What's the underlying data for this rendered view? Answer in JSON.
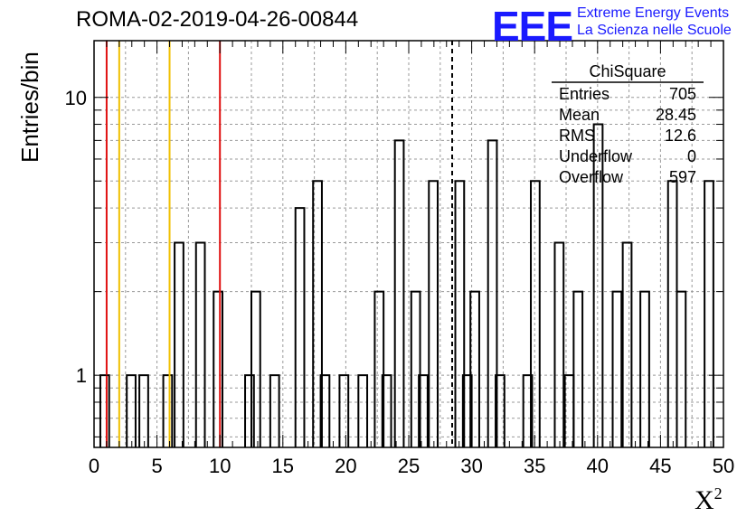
{
  "title": "ROMA-02-2019-04-26-00844",
  "logo": {
    "mark": "EEE",
    "line1": "Extreme Energy Events",
    "line2": "La Scienza nelle Scuole",
    "color": "#1a1aff"
  },
  "stats_box": {
    "title": "ChiSquare",
    "rows": [
      {
        "label": "Entries",
        "value": "705"
      },
      {
        "label": "Mean",
        "value": "28.45"
      },
      {
        "label": "RMS",
        "value": "12.6"
      },
      {
        "label": "Underflow",
        "value": "0"
      },
      {
        "label": "Overflow",
        "value": "597"
      }
    ]
  },
  "chart_data": {
    "type": "histogram",
    "ylabel": "Entries/bin",
    "xlabel": "X",
    "xlabel_sup": "2",
    "xlim": [
      0,
      50
    ],
    "ylim": [
      0.55,
      16
    ],
    "yscale": "log",
    "grid": true,
    "bin_width": 0.7,
    "x_ticks": [
      0,
      5,
      10,
      15,
      20,
      25,
      30,
      35,
      40,
      45,
      50
    ],
    "y_tick_labels": [
      {
        "value": 1,
        "label": "1"
      },
      {
        "value": 10,
        "label": "10"
      }
    ],
    "bins": [
      {
        "x0": 0.5,
        "count": 1
      },
      {
        "x0": 1.2,
        "count": 0
      },
      {
        "x0": 2.6,
        "count": 1
      },
      {
        "x0": 3.6,
        "count": 1
      },
      {
        "x0": 5.5,
        "count": 1
      },
      {
        "x0": 6.4,
        "count": 3
      },
      {
        "x0": 8.1,
        "count": 3
      },
      {
        "x0": 9.5,
        "count": 2
      },
      {
        "x0": 12.0,
        "count": 1
      },
      {
        "x0": 12.5,
        "count": 2
      },
      {
        "x0": 14.0,
        "count": 1
      },
      {
        "x0": 16.0,
        "count": 4
      },
      {
        "x0": 17.4,
        "count": 5
      },
      {
        "x0": 18.0,
        "count": 1
      },
      {
        "x0": 19.5,
        "count": 1
      },
      {
        "x0": 21.0,
        "count": 1
      },
      {
        "x0": 22.3,
        "count": 2
      },
      {
        "x0": 22.9,
        "count": 1
      },
      {
        "x0": 23.9,
        "count": 7
      },
      {
        "x0": 25.2,
        "count": 2
      },
      {
        "x0": 25.8,
        "count": 1
      },
      {
        "x0": 26.6,
        "count": 5
      },
      {
        "x0": 28.7,
        "count": 5
      },
      {
        "x0": 29.3,
        "count": 1
      },
      {
        "x0": 29.9,
        "count": 2
      },
      {
        "x0": 31.3,
        "count": 7
      },
      {
        "x0": 31.9,
        "count": 1
      },
      {
        "x0": 34.1,
        "count": 1
      },
      {
        "x0": 34.7,
        "count": 5
      },
      {
        "x0": 36.6,
        "count": 3
      },
      {
        "x0": 37.4,
        "count": 1
      },
      {
        "x0": 38.1,
        "count": 2
      },
      {
        "x0": 39.7,
        "count": 8
      },
      {
        "x0": 41.2,
        "count": 2
      },
      {
        "x0": 42.0,
        "count": 3
      },
      {
        "x0": 43.4,
        "count": 2
      },
      {
        "x0": 45.6,
        "count": 5
      },
      {
        "x0": 46.3,
        "count": 2
      },
      {
        "x0": 48.5,
        "count": 5
      }
    ],
    "vertical_lines": [
      {
        "x": 1.0,
        "color": "#e01010",
        "style": "solid"
      },
      {
        "x": 10.0,
        "color": "#e01010",
        "style": "solid"
      },
      {
        "x": 2.0,
        "color": "#f0c000",
        "style": "solid"
      },
      {
        "x": 6.0,
        "color": "#f0c000",
        "style": "solid"
      },
      {
        "x": 28.45,
        "color": "#000000",
        "style": "dashed"
      }
    ]
  }
}
